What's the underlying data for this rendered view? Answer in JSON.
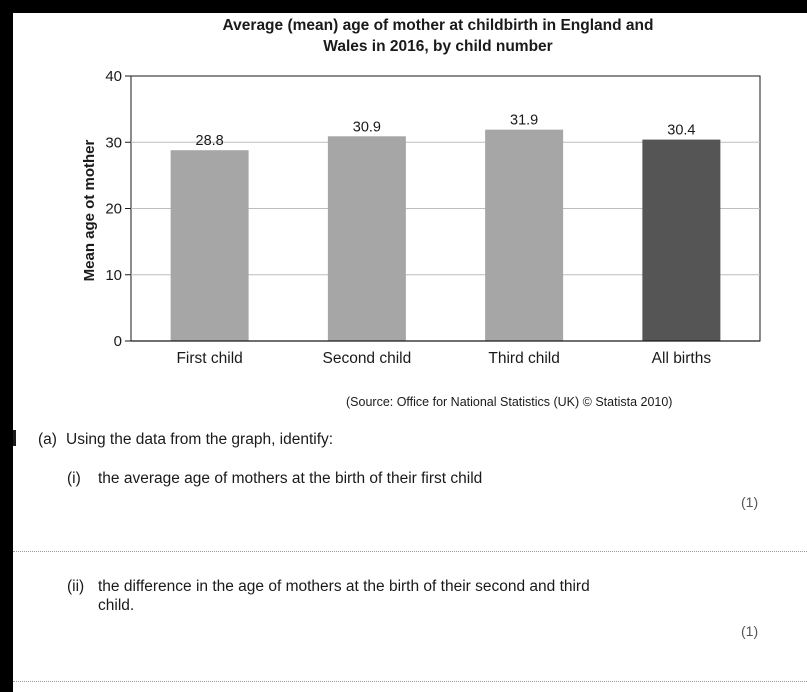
{
  "chart_data": {
    "type": "bar",
    "title": "Average (mean) age of mother at childbirth in England and Wales in 2016, by child number",
    "title_lines": [
      "Average (mean) age of mother at childbirth in England and",
      "Wales in 2016, by child number"
    ],
    "xlabel": "",
    "ylabel": "Mean age ot mother",
    "ylim": [
      0,
      40
    ],
    "yticks": [
      "0",
      "10",
      "20",
      "30",
      "40"
    ],
    "grid": true,
    "categories": [
      "First child",
      "Second child",
      "Third child",
      "All births"
    ],
    "values": [
      28.8,
      30.9,
      31.9,
      30.4
    ],
    "data_labels": [
      "28.8",
      "30.9",
      "31.9",
      "30.4"
    ],
    "colors": [
      "#a6a6a6",
      "#a6a6a6",
      "#a6a6a6",
      "#555555"
    ]
  },
  "source": "(Source: Office for National Statistics (UK) © Statista 2010)",
  "question": {
    "a_label": "(a)",
    "a_text": "Using the data from the graph, identify:",
    "i_label": "(i)",
    "i_text": "the average age of mothers at the birth of their first child",
    "i_marks": "(1)",
    "ii_label": "(ii)",
    "ii_text_line1": "the difference in the age of mothers at the birth of their second and third",
    "ii_text_line2": "child.",
    "ii_marks": "(1)"
  }
}
